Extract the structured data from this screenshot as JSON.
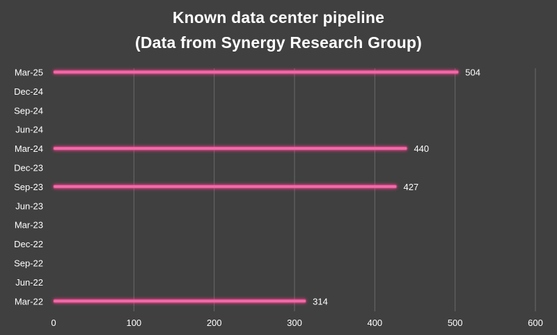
{
  "chart_data": {
    "type": "bar",
    "orientation": "horizontal",
    "title": "Known data center pipeline",
    "subtitle": "(Data from Synergy Research Group)",
    "xlabel": "",
    "ylabel": "",
    "categories": [
      "Mar-25",
      "Dec-24",
      "Sep-24",
      "Jun-24",
      "Mar-24",
      "Dec-23",
      "Sep-23",
      "Jun-23",
      "Mar-23",
      "Dec-22",
      "Sep-22",
      "Jun-22",
      "Mar-22"
    ],
    "values": [
      504,
      null,
      null,
      null,
      440,
      null,
      427,
      null,
      null,
      null,
      null,
      null,
      314
    ],
    "data_labels": [
      "504",
      "",
      "",
      "",
      "440",
      "",
      "427",
      "",
      "",
      "",
      "",
      "",
      "314"
    ],
    "xlim": [
      0,
      600
    ],
    "x_ticks": [
      0,
      100,
      200,
      300,
      400,
      500,
      600
    ],
    "x_tick_labels": [
      "0",
      "100",
      "200",
      "300",
      "400",
      "500",
      "600"
    ],
    "grid": "vertical",
    "legend": "none",
    "colors": {
      "background": "#404040",
      "bar": "#f06aa8",
      "bar_glow": "#ff3d8f",
      "grid": "#6a6a6a",
      "text": "#ffffff"
    }
  }
}
